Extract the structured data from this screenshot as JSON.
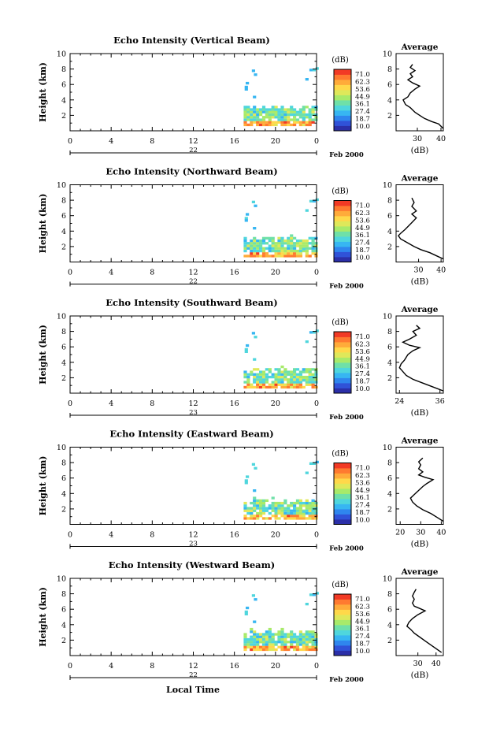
{
  "figure": {
    "xlabel": "Local Time",
    "date_label": "Feb 2000",
    "colorbar_unit": "(dB)",
    "colorbar_ticks": [
      "71.0",
      "62.3",
      "53.6",
      "44.9",
      "36.1",
      "27.4",
      "18.7",
      "10.0"
    ],
    "colormap": [
      "#2b2fa8",
      "#3052d8",
      "#2f86ee",
      "#37b6f2",
      "#4fd6dd",
      "#6fe0a8",
      "#a8ea6a",
      "#dfe85a",
      "#ffd84a",
      "#ffab3a",
      "#ff7a30",
      "#f23a25"
    ],
    "x_ticks": [
      "0",
      "4",
      "8",
      "12",
      "16",
      "20",
      "0"
    ],
    "y_ticks": [
      "10",
      "8",
      "6",
      "4",
      "2"
    ],
    "y_axis_label": "Height (km)",
    "avg_title": "Average",
    "avg_xlabel": "(dB)"
  },
  "chart_data": [
    {
      "type": "heatmap",
      "title": "Echo Intensity (Vertical Beam)",
      "day_label": "22",
      "xlim": [
        0,
        24
      ],
      "ylim": [
        0,
        10
      ],
      "avg": {
        "x_ticks": [
          30,
          40
        ],
        "xlim": [
          21,
          41
        ],
        "profile": [
          [
            41,
            0.3
          ],
          [
            39,
            0.9
          ],
          [
            36,
            1.2
          ],
          [
            33,
            1.6
          ],
          [
            31,
            2.0
          ],
          [
            29,
            2.4
          ],
          [
            27,
            3.0
          ],
          [
            25,
            3.4
          ],
          [
            24,
            4.0
          ],
          [
            26,
            4.4
          ],
          [
            27,
            4.9
          ],
          [
            29,
            5.4
          ],
          [
            31,
            5.8
          ],
          [
            28,
            6.2
          ],
          [
            26,
            6.6
          ],
          [
            28,
            7.0
          ],
          [
            27,
            7.4
          ],
          [
            29,
            7.8
          ],
          [
            27,
            8.2
          ],
          [
            28,
            8.6
          ]
        ]
      }
    },
    {
      "type": "heatmap",
      "title": "Echo Intensity (Northward Beam)",
      "day_label": "22",
      "xlim": [
        0,
        24
      ],
      "ylim": [
        0,
        10
      ],
      "avg": {
        "x_ticks": [
          30,
          40
        ],
        "xlim": [
          20,
          41
        ],
        "profile": [
          [
            41,
            0.4
          ],
          [
            38,
            0.8
          ],
          [
            35,
            1.2
          ],
          [
            31,
            1.6
          ],
          [
            28,
            2.0
          ],
          [
            25,
            2.5
          ],
          [
            22,
            3.0
          ],
          [
            21,
            3.4
          ],
          [
            22,
            3.7
          ],
          [
            24,
            4.2
          ],
          [
            27,
            5.1
          ],
          [
            29,
            5.7
          ],
          [
            27,
            6.2
          ],
          [
            29,
            6.6
          ],
          [
            27,
            7.2
          ],
          [
            28,
            7.7
          ],
          [
            27,
            8.3
          ]
        ]
      }
    },
    {
      "type": "heatmap",
      "title": "Echo Intensity (Southward Beam)",
      "day_label": "23",
      "xlim": [
        0,
        24
      ],
      "ylim": [
        0,
        10
      ],
      "avg": {
        "x_ticks": [
          24,
          36
        ],
        "xlim": [
          23,
          37
        ],
        "profile": [
          [
            37,
            0.3
          ],
          [
            34,
            0.8
          ],
          [
            31,
            1.3
          ],
          [
            28,
            1.8
          ],
          [
            26,
            2.3
          ],
          [
            25,
            2.8
          ],
          [
            24,
            3.3
          ],
          [
            24.5,
            3.8
          ],
          [
            25.5,
            4.3
          ],
          [
            26.5,
            5.0
          ],
          [
            28,
            5.5
          ],
          [
            30,
            5.9
          ],
          [
            27,
            6.2
          ],
          [
            25,
            6.6
          ],
          [
            27,
            7.0
          ],
          [
            29,
            7.5
          ],
          [
            28,
            8.0
          ],
          [
            30,
            8.4
          ],
          [
            29,
            8.8
          ]
        ]
      }
    },
    {
      "type": "heatmap",
      "title": "Echo Intensity (Eastward Beam)",
      "day_label": "23",
      "xlim": [
        0,
        24
      ],
      "ylim": [
        0,
        10
      ],
      "avg": {
        "x_ticks": [
          20,
          30,
          40
        ],
        "xlim": [
          18,
          41
        ],
        "profile": [
          [
            41,
            0.4
          ],
          [
            38,
            0.9
          ],
          [
            35,
            1.4
          ],
          [
            31,
            1.9
          ],
          [
            28,
            2.4
          ],
          [
            26,
            2.9
          ],
          [
            25,
            3.4
          ],
          [
            27,
            3.9
          ],
          [
            29,
            4.4
          ],
          [
            31,
            4.9
          ],
          [
            33,
            5.3
          ],
          [
            36,
            5.8
          ],
          [
            32,
            6.1
          ],
          [
            29,
            6.4
          ],
          [
            31,
            6.8
          ],
          [
            29,
            7.2
          ],
          [
            30,
            7.7
          ],
          [
            29,
            8.1
          ],
          [
            31,
            8.6
          ]
        ]
      }
    },
    {
      "type": "heatmap",
      "title": "Echo Intensity (Westward Beam)",
      "day_label": "22",
      "xlim": [
        0,
        24
      ],
      "ylim": [
        0,
        10
      ],
      "avg": {
        "x_ticks": [
          30,
          40
        ],
        "xlim": [
          18,
          44
        ],
        "profile": [
          [
            43,
            0.4
          ],
          [
            40,
            0.9
          ],
          [
            37,
            1.4
          ],
          [
            34,
            1.9
          ],
          [
            31,
            2.4
          ],
          [
            28,
            2.9
          ],
          [
            26,
            3.4
          ],
          [
            24,
            3.8
          ],
          [
            25,
            4.3
          ],
          [
            27,
            4.8
          ],
          [
            30,
            5.3
          ],
          [
            34,
            5.8
          ],
          [
            31,
            6.1
          ],
          [
            28,
            6.4
          ],
          [
            27,
            6.8
          ],
          [
            28,
            7.3
          ],
          [
            27,
            7.7
          ],
          [
            28,
            8.2
          ],
          [
            29,
            8.6
          ]
        ]
      }
    }
  ]
}
